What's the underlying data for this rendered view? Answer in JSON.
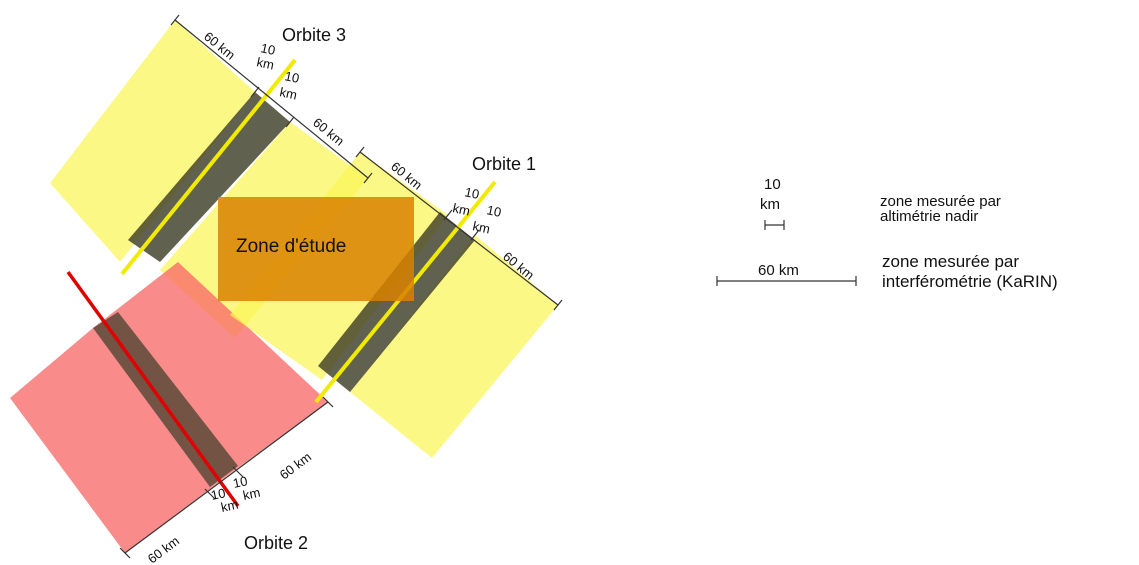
{
  "colors": {
    "yellow_swath": "#fbf558",
    "red_swath": "#f76a6a",
    "nadir_band": "#3e3e28",
    "yellow_track": "#f2ea00",
    "red_track": "#e00000",
    "study_zone": "#d98100"
  },
  "orbits": {
    "orbit1": {
      "label": "Orbite 1"
    },
    "orbit2": {
      "label": "Orbite 2"
    },
    "orbit3": {
      "label": "Orbite 3"
    }
  },
  "study_zone": {
    "label": "Zone d'étude"
  },
  "dimensions": {
    "swath": "60 km",
    "nadir_line1": "10",
    "nadir_line2": "km"
  },
  "legend": {
    "nadir_value": "10",
    "nadir_unit": "km",
    "nadir_desc_line1": "zone mesurée par",
    "nadir_desc_line2": "altimétrie nadir",
    "karin_value": "60 km",
    "karin_desc_line1": "zone mesurée par",
    "karin_desc_line2": "interférométrie (KaRIN)"
  }
}
